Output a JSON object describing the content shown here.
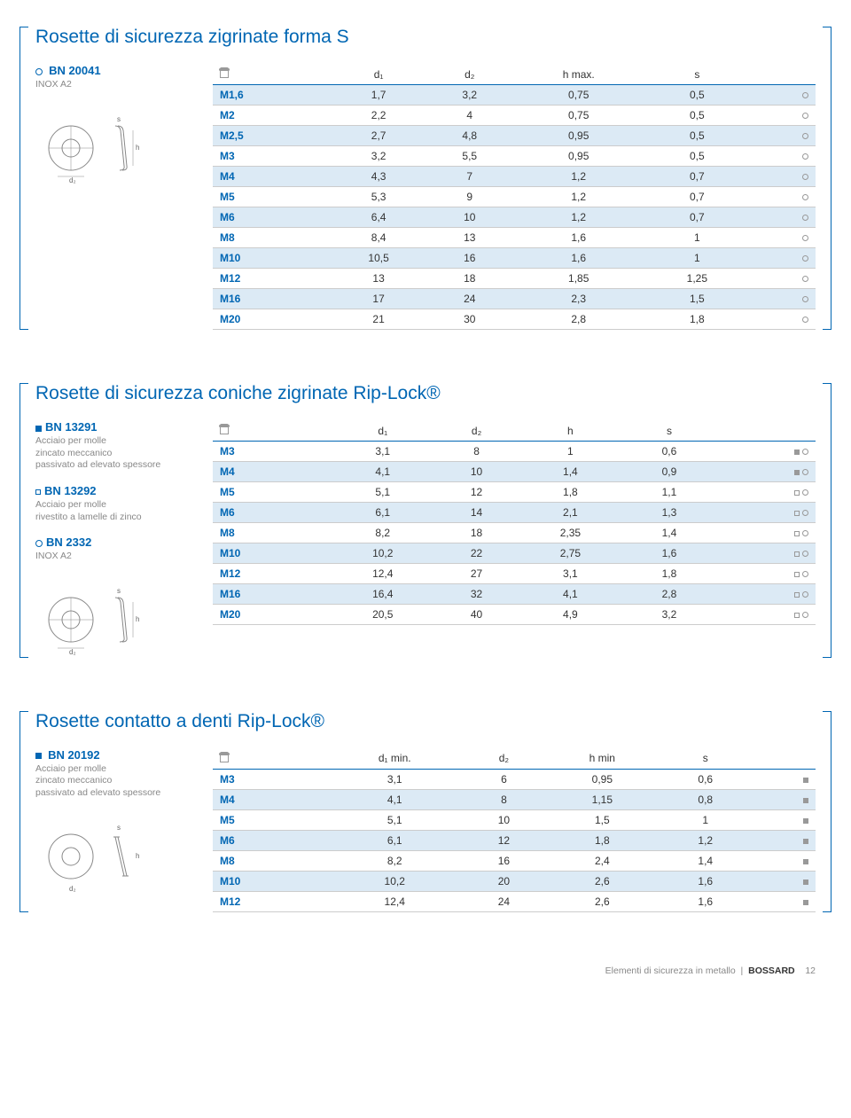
{
  "section1": {
    "title": "Rosette di sicurezza zigrinate forma S",
    "bn": {
      "code": "BN 20041",
      "desc": "INOX A2",
      "mark": "circle"
    },
    "columns": [
      "",
      "d₁",
      "d₂",
      "h max.",
      "s",
      ""
    ],
    "rows": [
      {
        "size": "M1,6",
        "v": [
          "1,7",
          "3,2",
          "0,75",
          "0,5"
        ],
        "marks": [
          "circle"
        ],
        "alt": true
      },
      {
        "size": "M2",
        "v": [
          "2,2",
          "4",
          "0,75",
          "0,5"
        ],
        "marks": [
          "circle"
        ],
        "alt": false
      },
      {
        "size": "M2,5",
        "v": [
          "2,7",
          "4,8",
          "0,95",
          "0,5"
        ],
        "marks": [
          "circle"
        ],
        "alt": true
      },
      {
        "size": "M3",
        "v": [
          "3,2",
          "5,5",
          "0,95",
          "0,5"
        ],
        "marks": [
          "circle"
        ],
        "alt": false
      },
      {
        "size": "M4",
        "v": [
          "4,3",
          "7",
          "1,2",
          "0,7"
        ],
        "marks": [
          "circle"
        ],
        "alt": true
      },
      {
        "size": "M5",
        "v": [
          "5,3",
          "9",
          "1,2",
          "0,7"
        ],
        "marks": [
          "circle"
        ],
        "alt": false
      },
      {
        "size": "M6",
        "v": [
          "6,4",
          "10",
          "1,2",
          "0,7"
        ],
        "marks": [
          "circle"
        ],
        "alt": true
      },
      {
        "size": "M8",
        "v": [
          "8,4",
          "13",
          "1,6",
          "1"
        ],
        "marks": [
          "circle"
        ],
        "alt": false
      },
      {
        "size": "M10",
        "v": [
          "10,5",
          "16",
          "1,6",
          "1"
        ],
        "marks": [
          "circle"
        ],
        "alt": true
      },
      {
        "size": "M12",
        "v": [
          "13",
          "18",
          "1,85",
          "1,25"
        ],
        "marks": [
          "circle"
        ],
        "alt": false
      },
      {
        "size": "M16",
        "v": [
          "17",
          "24",
          "2,3",
          "1,5"
        ],
        "marks": [
          "circle"
        ],
        "alt": true
      },
      {
        "size": "M20",
        "v": [
          "21",
          "30",
          "2,8",
          "1,8"
        ],
        "marks": [
          "circle"
        ],
        "alt": false
      }
    ]
  },
  "section2": {
    "title": "Rosette di sicurezza coniche zigrinate Rip-Lock®",
    "bns": [
      {
        "code": "BN 13291",
        "desc": "Acciaio per molle\nzincato meccanico\npassivato ad elevato spessore",
        "mark": "sq-full"
      },
      {
        "code": "BN 13292",
        "desc": "Acciaio per molle\nrivestito a lamelle di zinco",
        "mark": "sq-empty"
      },
      {
        "code": "BN 2332",
        "desc": "INOX A2",
        "mark": "circle"
      }
    ],
    "columns": [
      "",
      "d₁",
      "d₂",
      "h",
      "s",
      ""
    ],
    "rows": [
      {
        "size": "M3",
        "v": [
          "3,1",
          "8",
          "1",
          "0,6"
        ],
        "marks": [
          "sq-full",
          "circle"
        ],
        "alt": false
      },
      {
        "size": "M4",
        "v": [
          "4,1",
          "10",
          "1,4",
          "0,9"
        ],
        "marks": [
          "sq-full",
          "circle"
        ],
        "alt": true
      },
      {
        "size": "M5",
        "v": [
          "5,1",
          "12",
          "1,8",
          "1,1"
        ],
        "marks": [
          "sq-empty",
          "circle"
        ],
        "alt": false
      },
      {
        "size": "M6",
        "v": [
          "6,1",
          "14",
          "2,1",
          "1,3"
        ],
        "marks": [
          "sq-empty",
          "circle"
        ],
        "alt": true
      },
      {
        "size": "M8",
        "v": [
          "8,2",
          "18",
          "2,35",
          "1,4"
        ],
        "marks": [
          "sq-empty",
          "circle"
        ],
        "alt": false
      },
      {
        "size": "M10",
        "v": [
          "10,2",
          "22",
          "2,75",
          "1,6"
        ],
        "marks": [
          "sq-empty",
          "circle"
        ],
        "alt": true
      },
      {
        "size": "M12",
        "v": [
          "12,4",
          "27",
          "3,1",
          "1,8"
        ],
        "marks": [
          "sq-empty",
          "circle"
        ],
        "alt": false
      },
      {
        "size": "M16",
        "v": [
          "16,4",
          "32",
          "4,1",
          "2,8"
        ],
        "marks": [
          "sq-empty",
          "circle"
        ],
        "alt": true
      },
      {
        "size": "M20",
        "v": [
          "20,5",
          "40",
          "4,9",
          "3,2"
        ],
        "marks": [
          "sq-empty",
          "circle"
        ],
        "alt": false
      }
    ]
  },
  "section3": {
    "title": "Rosette contatto a denti Rip-Lock®",
    "bn": {
      "code": "BN 20192",
      "desc": "Acciaio per molle\nzincato meccanico\npassivato ad elevato spessore",
      "mark": "sq-full"
    },
    "columns": [
      "",
      "d₁ min.",
      "d₂",
      "h min",
      "s",
      ""
    ],
    "rows": [
      {
        "size": "M3",
        "v": [
          "3,1",
          "6",
          "0,95",
          "0,6"
        ],
        "marks": [
          "sq-full"
        ],
        "alt": false
      },
      {
        "size": "M4",
        "v": [
          "4,1",
          "8",
          "1,15",
          "0,8"
        ],
        "marks": [
          "sq-full"
        ],
        "alt": true
      },
      {
        "size": "M5",
        "v": [
          "5,1",
          "10",
          "1,5",
          "1"
        ],
        "marks": [
          "sq-full"
        ],
        "alt": false
      },
      {
        "size": "M6",
        "v": [
          "6,1",
          "12",
          "1,8",
          "1,2"
        ],
        "marks": [
          "sq-full"
        ],
        "alt": true
      },
      {
        "size": "M8",
        "v": [
          "8,2",
          "16",
          "2,4",
          "1,4"
        ],
        "marks": [
          "sq-full"
        ],
        "alt": false
      },
      {
        "size": "M10",
        "v": [
          "10,2",
          "20",
          "2,6",
          "1,6"
        ],
        "marks": [
          "sq-full"
        ],
        "alt": true
      },
      {
        "size": "M12",
        "v": [
          "12,4",
          "24",
          "2,6",
          "1,6"
        ],
        "marks": [
          "sq-full"
        ],
        "alt": false
      }
    ]
  },
  "footer": {
    "text": "Elementi di sicurezza in metallo",
    "brand": "BOSSARD",
    "page": "12"
  },
  "diagram": {
    "d2": "d₂",
    "h": "h",
    "s": "s",
    "d1": "d₁"
  }
}
